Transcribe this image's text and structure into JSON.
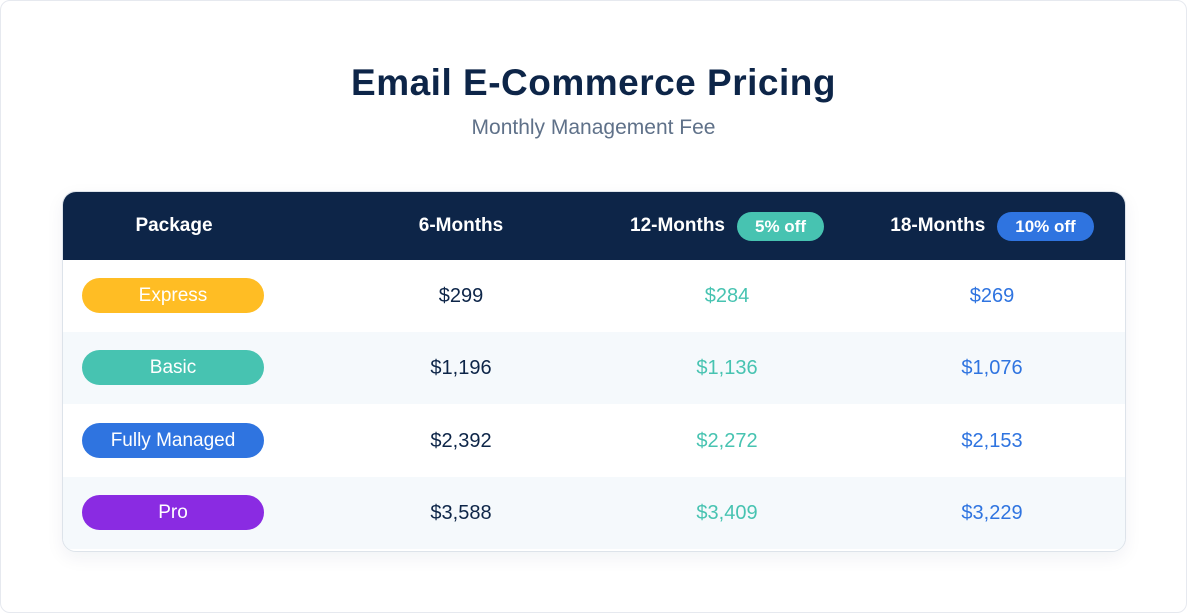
{
  "header": {
    "title": "Email E-Commerce Pricing",
    "subtitle": "Monthly Management Fee"
  },
  "colors": {
    "navy": "#0d2548",
    "green": "#47c3b1",
    "blue": "#2f74e0",
    "express": "#ffbd24",
    "basic": "#47c3b1",
    "fully_managed": "#2f74e0",
    "pro": "#8a2be2"
  },
  "table": {
    "columns": {
      "package": "Package",
      "six_months": "6-Months",
      "twelve_months": "12-Months",
      "twelve_badge": "5% off",
      "eighteen_months": "18-Months",
      "eighteen_badge": "10% off"
    },
    "rows": [
      {
        "package": "Express",
        "color": "#ffbd24",
        "six": "$299",
        "twelve": "$284",
        "eighteen": "$269"
      },
      {
        "package": "Basic",
        "color": "#47c3b1",
        "six": "$1,196",
        "twelve": "$1,136",
        "eighteen": "$1,076"
      },
      {
        "package": "Fully Managed",
        "color": "#2f74e0",
        "six": "$2,392",
        "twelve": "$2,272",
        "eighteen": "$2,153"
      },
      {
        "package": "Pro",
        "color": "#8a2be2",
        "six": "$3,588",
        "twelve": "$3,409",
        "eighteen": "$3,229"
      }
    ]
  }
}
